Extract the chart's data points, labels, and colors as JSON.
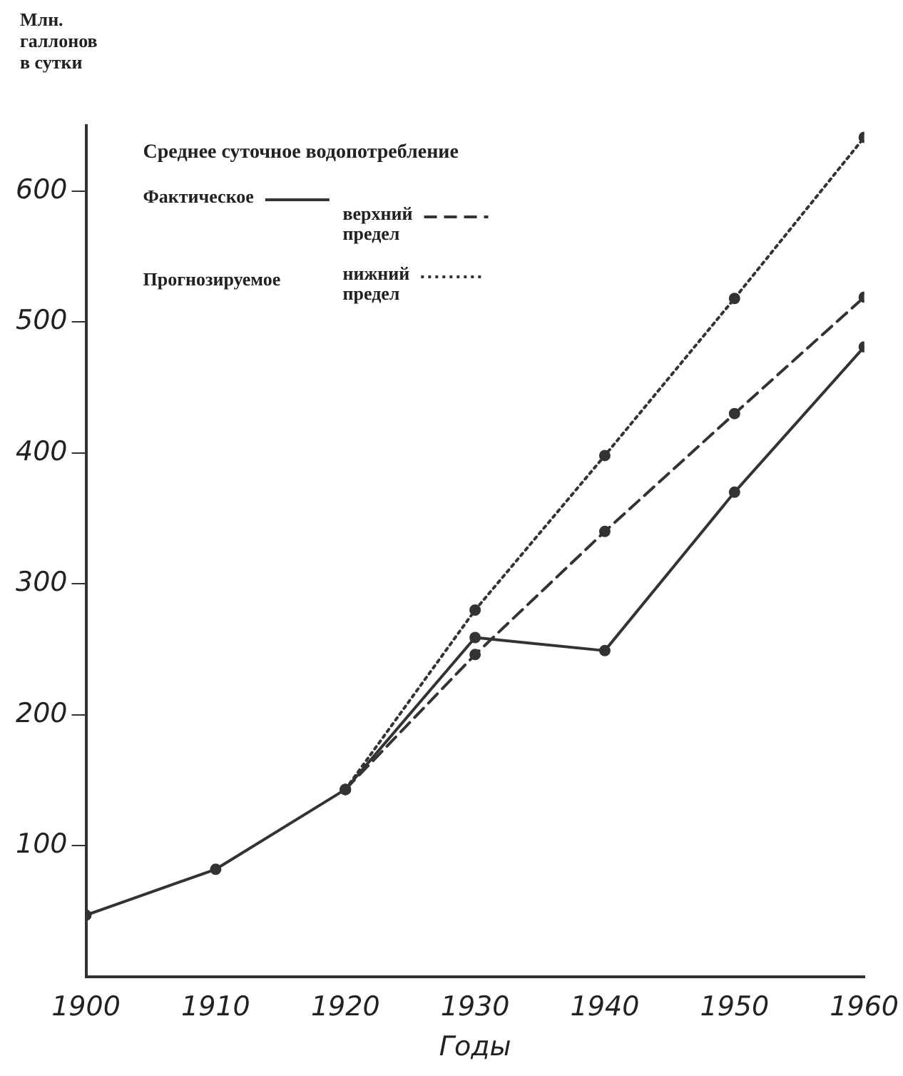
{
  "chart_data": {
    "type": "line",
    "ylabel": "Млн.\nгаллонов\nв сутки",
    "xlabel": "Годы",
    "legend_title": "Среднее суточное водопотребление",
    "annotations": [
      "Прогнозируемое"
    ],
    "x": [
      1900,
      1910,
      1920,
      1930,
      1940,
      1950,
      1960
    ],
    "xlim": [
      1900,
      1960
    ],
    "xticks": [
      1900,
      1910,
      1920,
      1930,
      1940,
      1950,
      1960
    ],
    "ylim": [
      0,
      650
    ],
    "yticks": [
      100,
      200,
      300,
      400,
      500,
      600
    ],
    "grid": false,
    "legend": "top left",
    "marker": "circle",
    "series": [
      {
        "name": "Фактическое",
        "color": "#333333",
        "line_style": "solid",
        "values": [
          47,
          82,
          143,
          259,
          249,
          370,
          481
        ]
      },
      {
        "name": "верхний предел",
        "color": "#333333",
        "line_style": "dashed",
        "x": [
          1920,
          1930,
          1940,
          1950,
          1960
        ],
        "values": [
          143,
          246,
          340,
          430,
          519
        ]
      },
      {
        "name": "нижний предел",
        "color": "#333333",
        "line_style": "dotted",
        "x": [
          1920,
          1930,
          1940,
          1950,
          1960
        ],
        "values": [
          143,
          280,
          398,
          518,
          641
        ]
      }
    ]
  }
}
